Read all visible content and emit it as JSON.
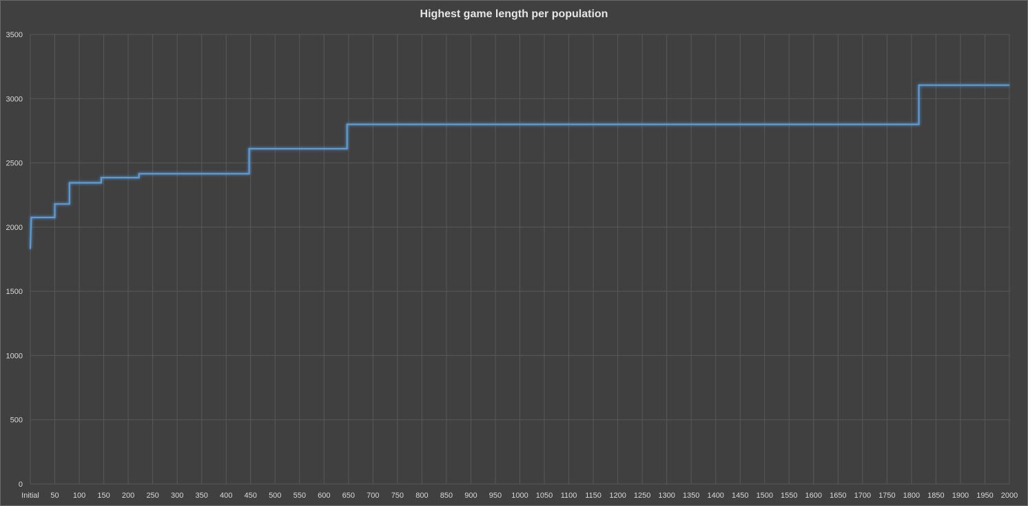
{
  "chart_data": {
    "type": "line",
    "title": "Highest game length per population",
    "xlabel": "",
    "ylabel": "",
    "x_range": [
      0,
      2000
    ],
    "ylim": [
      0,
      3500
    ],
    "x_ticks": [
      {
        "value": 0,
        "label": "Initial"
      },
      {
        "value": 50,
        "label": "50"
      },
      {
        "value": 100,
        "label": "100"
      },
      {
        "value": 150,
        "label": "150"
      },
      {
        "value": 200,
        "label": "200"
      },
      {
        "value": 250,
        "label": "250"
      },
      {
        "value": 300,
        "label": "300"
      },
      {
        "value": 350,
        "label": "350"
      },
      {
        "value": 400,
        "label": "400"
      },
      {
        "value": 450,
        "label": "450"
      },
      {
        "value": 500,
        "label": "500"
      },
      {
        "value": 550,
        "label": "550"
      },
      {
        "value": 600,
        "label": "600"
      },
      {
        "value": 650,
        "label": "650"
      },
      {
        "value": 700,
        "label": "700"
      },
      {
        "value": 750,
        "label": "750"
      },
      {
        "value": 800,
        "label": "800"
      },
      {
        "value": 850,
        "label": "850"
      },
      {
        "value": 900,
        "label": "900"
      },
      {
        "value": 950,
        "label": "950"
      },
      {
        "value": 1000,
        "label": "1000"
      },
      {
        "value": 1050,
        "label": "1050"
      },
      {
        "value": 1100,
        "label": "1100"
      },
      {
        "value": 1150,
        "label": "1150"
      },
      {
        "value": 1200,
        "label": "1200"
      },
      {
        "value": 1250,
        "label": "1250"
      },
      {
        "value": 1300,
        "label": "1300"
      },
      {
        "value": 1350,
        "label": "1350"
      },
      {
        "value": 1400,
        "label": "1400"
      },
      {
        "value": 1450,
        "label": "1450"
      },
      {
        "value": 1500,
        "label": "1500"
      },
      {
        "value": 1550,
        "label": "1550"
      },
      {
        "value": 1600,
        "label": "1600"
      },
      {
        "value": 1650,
        "label": "1650"
      },
      {
        "value": 1700,
        "label": "1700"
      },
      {
        "value": 1750,
        "label": "1750"
      },
      {
        "value": 1800,
        "label": "1800"
      },
      {
        "value": 1850,
        "label": "1850"
      },
      {
        "value": 1900,
        "label": "1900"
      },
      {
        "value": 1950,
        "label": "1950"
      },
      {
        "value": 2000,
        "label": "2000"
      }
    ],
    "y_ticks": [
      0,
      500,
      1000,
      1500,
      2000,
      2500,
      3000,
      3500
    ],
    "grid": true,
    "series": [
      {
        "color": "#5b9bd5",
        "x": [
          0,
          2,
          2,
          50,
          50,
          80,
          80,
          145,
          145,
          222,
          222,
          447,
          447,
          647,
          647,
          1815,
          1815,
          2000
        ],
        "y": [
          1830,
          2075,
          2075,
          2075,
          2180,
          2180,
          2345,
          2345,
          2385,
          2385,
          2415,
          2415,
          2610,
          2610,
          2800,
          2800,
          3105,
          3105
        ]
      }
    ],
    "colors": {
      "background": "#404040",
      "gridline": "#595959",
      "text": "#d9d9d9",
      "title": "#e6e6e6"
    }
  }
}
